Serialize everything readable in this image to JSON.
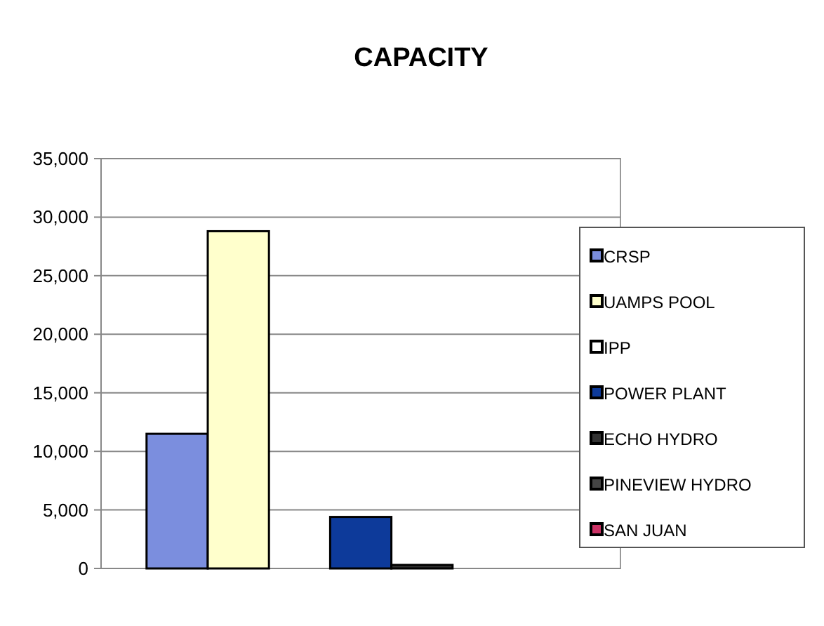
{
  "chart_data": {
    "type": "bar",
    "title": "CAPACITY",
    "categories": [
      null
    ],
    "series": [
      {
        "name": "CRSP",
        "color": "#7b8ede",
        "values": [
          11500
        ]
      },
      {
        "name": "UAMPS POOL",
        "color": "#ffffcc",
        "values": [
          28800
        ]
      },
      {
        "name": "IPP",
        "color": "#ffffff",
        "values": [
          0
        ]
      },
      {
        "name": "POWER PLANT",
        "color": "#0d3a9a",
        "values": [
          4400
        ]
      },
      {
        "name": "ECHO HYDRO",
        "color": "#333333",
        "values": [
          300
        ]
      },
      {
        "name": "PINEVIEW HYDRO",
        "color": "#444444",
        "values": [
          0
        ]
      },
      {
        "name": "SAN JUAN",
        "color": "#cc3366",
        "values": [
          0
        ]
      }
    ],
    "ylim": [
      0,
      35000
    ],
    "yticks": [
      {
        "value": 0,
        "label": "0"
      },
      {
        "value": 5000,
        "label": "5,000"
      },
      {
        "value": 10000,
        "label": "10,000"
      },
      {
        "value": 15000,
        "label": "15,000"
      },
      {
        "value": 20000,
        "label": "20,000"
      },
      {
        "value": 25000,
        "label": "25,000"
      },
      {
        "value": 30000,
        "label": "30,000"
      },
      {
        "value": 35000,
        "label": "35,000"
      }
    ],
    "grid": "y",
    "legend": "right"
  }
}
